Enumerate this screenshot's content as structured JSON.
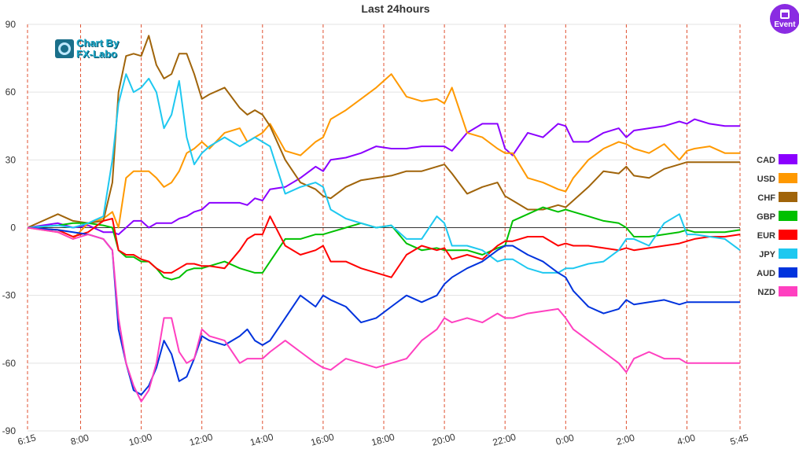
{
  "watermark": {
    "line1": "Chart By",
    "line2": "FX-Labo"
  },
  "event_button": {
    "label": "Event",
    "icon": "calendar-icon",
    "color": "#8a2be2"
  },
  "chart_data": {
    "type": "line",
    "title": "Last 24hours",
    "xlabel": "",
    "ylabel": "",
    "x_tick_labels": [
      "6:15",
      "8:00",
      "10:00",
      "12:00",
      "14:00",
      "16:00",
      "18:00",
      "20:00",
      "22:00",
      "0:00",
      "2:00",
      "4:00",
      "5:45"
    ],
    "x_tick_hours": [
      0,
      1.75,
      3.75,
      5.75,
      7.75,
      9.75,
      11.75,
      13.75,
      15.75,
      17.75,
      19.75,
      21.75,
      23.5
    ],
    "xlim": [
      0,
      23.5
    ],
    "ylim": [
      -90,
      90
    ],
    "y_ticks": [
      90,
      60,
      30,
      0,
      -30,
      -60,
      -90
    ],
    "grid": "horizontal gridlines, vertical dashed red lines at time ticks",
    "legend_position": "right",
    "x_hours": [
      0,
      1,
      1.5,
      2,
      2.5,
      2.8,
      3,
      3.25,
      3.5,
      3.75,
      4,
      4.25,
      4.5,
      4.75,
      5,
      5.25,
      5.5,
      5.75,
      6,
      6.5,
      7,
      7.25,
      7.5,
      7.75,
      8,
      8.5,
      9,
      9.5,
      9.75,
      10,
      10.5,
      11,
      11.5,
      12,
      12.5,
      13,
      13.5,
      13.75,
      14,
      14.5,
      15,
      15.5,
      15.75,
      16,
      16.5,
      17,
      17.5,
      17.75,
      18,
      18.5,
      19,
      19.5,
      19.75,
      20,
      20.5,
      21,
      21.5,
      21.75,
      22,
      22.5,
      23,
      23.5
    ],
    "series": [
      {
        "name": "CAD",
        "color": "#8b00ff",
        "values": [
          0,
          2,
          0,
          1,
          -2,
          -2,
          -3,
          0,
          3,
          3,
          0,
          2,
          2,
          2,
          4,
          5,
          7,
          8,
          11,
          11,
          11,
          10,
          13,
          12,
          17,
          18,
          22,
          27,
          25,
          30,
          31,
          33,
          36,
          35,
          35,
          36,
          36,
          36,
          34,
          42,
          46,
          46,
          35,
          32,
          42,
          40,
          46,
          45,
          38,
          38,
          42,
          44,
          40,
          43,
          44,
          45,
          47,
          46,
          48,
          46,
          45,
          45
        ]
      },
      {
        "name": "USD",
        "color": "#ff9900",
        "values": [
          0,
          -2,
          -5,
          2,
          4,
          7,
          0,
          22,
          25,
          25,
          25,
          22,
          18,
          20,
          25,
          33,
          35,
          38,
          35,
          42,
          44,
          38,
          40,
          42,
          46,
          34,
          32,
          38,
          40,
          48,
          52,
          57,
          62,
          68,
          58,
          56,
          57,
          55,
          62,
          42,
          40,
          35,
          33,
          33,
          22,
          20,
          17,
          16,
          22,
          30,
          35,
          38,
          37,
          35,
          33,
          37,
          30,
          34,
          35,
          36,
          33,
          33
        ]
      },
      {
        "name": "CHF",
        "color": "#a0640a",
        "values": [
          0,
          6,
          3,
          2,
          3,
          20,
          60,
          76,
          77,
          76,
          85,
          72,
          66,
          68,
          77,
          77,
          68,
          57,
          59,
          62,
          53,
          50,
          52,
          50,
          45,
          30,
          20,
          17,
          14,
          13,
          18,
          21,
          22,
          23,
          25,
          25,
          27,
          28,
          24,
          15,
          18,
          20,
          14,
          12,
          8,
          8,
          10,
          9,
          12,
          18,
          25,
          24,
          27,
          23,
          22,
          26,
          28,
          29,
          29,
          29,
          29,
          29
        ]
      },
      {
        "name": "GBP",
        "color": "#00c000",
        "values": [
          0,
          1,
          2,
          2,
          1,
          0,
          -10,
          -13,
          -13,
          -15,
          -15,
          -18,
          -22,
          -23,
          -22,
          -19,
          -18,
          -18,
          -17,
          -15,
          -18,
          -19,
          -20,
          -20,
          -15,
          -5,
          -5,
          -3,
          -3,
          -2,
          0,
          2,
          0,
          1,
          -7,
          -10,
          -9,
          -10,
          -10,
          -10,
          -12,
          -9,
          -8,
          3,
          6,
          9,
          7,
          8,
          7,
          5,
          3,
          2,
          0,
          -4,
          -4,
          -3,
          -2,
          -1,
          -2,
          -2,
          -2,
          -1
        ]
      },
      {
        "name": "EUR",
        "color": "#ff0000",
        "values": [
          0,
          -1,
          -4,
          -2,
          3,
          4,
          -10,
          -12,
          -12,
          -14,
          -15,
          -18,
          -20,
          -20,
          -18,
          -16,
          -16,
          -17,
          -17,
          -18,
          -10,
          -5,
          -3,
          -3,
          5,
          -8,
          -12,
          -10,
          -8,
          -15,
          -15,
          -18,
          -20,
          -22,
          -12,
          -8,
          -10,
          -9,
          -14,
          -12,
          -14,
          -8,
          -6,
          -6,
          -4,
          -4,
          -8,
          -7,
          -8,
          -8,
          -9,
          -10,
          -9,
          -10,
          -9,
          -8,
          -7,
          -6,
          -5,
          -4,
          -4,
          -3
        ]
      },
      {
        "name": "JPY",
        "color": "#1ec8f0",
        "values": [
          0,
          1,
          0,
          2,
          5,
          30,
          55,
          68,
          60,
          62,
          66,
          60,
          44,
          50,
          65,
          40,
          28,
          33,
          36,
          40,
          36,
          38,
          40,
          38,
          36,
          15,
          18,
          20,
          18,
          8,
          4,
          2,
          0,
          1,
          -5,
          -5,
          5,
          2,
          -8,
          -8,
          -10,
          -15,
          -14,
          -14,
          -18,
          -20,
          -20,
          -18,
          -18,
          -16,
          -15,
          -10,
          -5,
          -5,
          -8,
          2,
          6,
          -3,
          -3,
          -4,
          -5,
          -10
        ]
      },
      {
        "name": "AUD",
        "color": "#0033dd",
        "values": [
          0,
          -1,
          -2,
          -3,
          -5,
          -10,
          -45,
          -60,
          -72,
          -74,
          -70,
          -62,
          -50,
          -56,
          -68,
          -66,
          -58,
          -48,
          -50,
          -52,
          -48,
          -45,
          -50,
          -52,
          -50,
          -40,
          -30,
          -35,
          -30,
          -32,
          -35,
          -42,
          -40,
          -35,
          -30,
          -33,
          -30,
          -25,
          -22,
          -18,
          -15,
          -10,
          -8,
          -8,
          -12,
          -15,
          -20,
          -22,
          -28,
          -35,
          -38,
          -36,
          -32,
          -34,
          -33,
          -32,
          -34,
          -33,
          -33,
          -33,
          -33,
          -33
        ]
      },
      {
        "name": "NZD",
        "color": "#ff40c0",
        "values": [
          0,
          -2,
          -5,
          -3,
          -5,
          -10,
          -40,
          -60,
          -70,
          -77,
          -72,
          -60,
          -40,
          -40,
          -55,
          -60,
          -58,
          -45,
          -48,
          -50,
          -60,
          -58,
          -58,
          -58,
          -55,
          -50,
          -55,
          -60,
          -62,
          -63,
          -58,
          -60,
          -62,
          -60,
          -58,
          -50,
          -45,
          -40,
          -42,
          -40,
          -42,
          -38,
          -40,
          -40,
          -38,
          -37,
          -36,
          -40,
          -45,
          -50,
          -55,
          -60,
          -64,
          -58,
          -55,
          -58,
          -58,
          -60,
          -60,
          -60,
          -60,
          -60
        ]
      }
    ]
  }
}
